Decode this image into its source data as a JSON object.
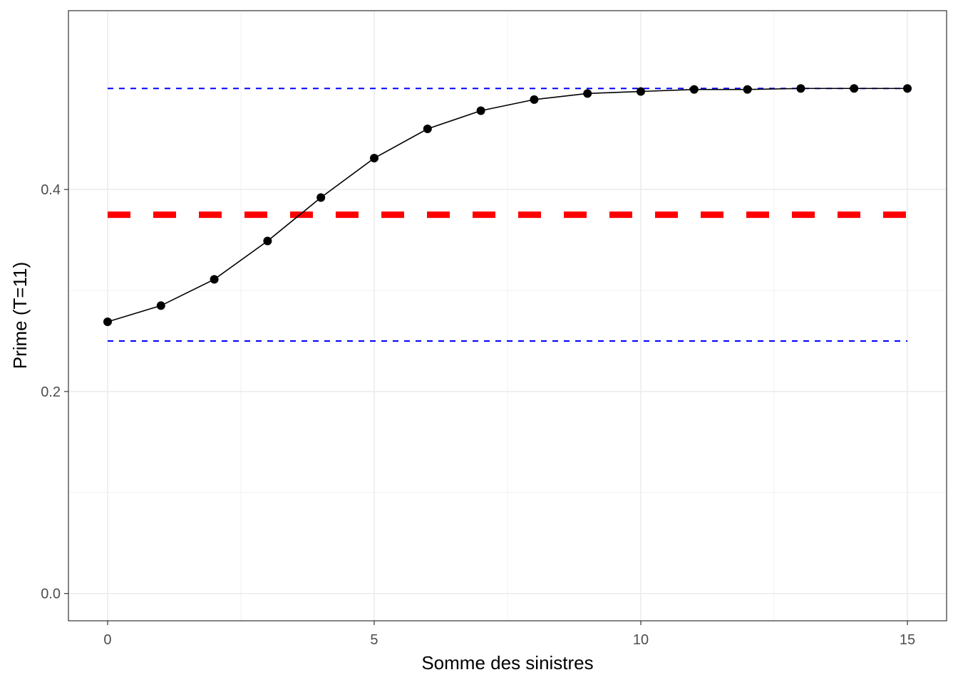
{
  "chart_data": {
    "type": "line",
    "xlabel": "Somme des sinistres",
    "ylabel": "Prime (T=11)",
    "xlim": [
      -0.735,
      15.735
    ],
    "ylim": [
      -0.027,
      0.577
    ],
    "x_ticks": [
      0,
      5,
      10,
      15
    ],
    "x_tick_labels": [
      "0",
      "5",
      "10",
      "15"
    ],
    "y_ticks": [
      0.0,
      0.2,
      0.4
    ],
    "y_tick_labels": [
      "0.0",
      "0.2",
      "0.4"
    ],
    "grid": true,
    "series": [
      {
        "x": [
          0,
          1,
          2,
          3,
          4,
          5,
          6,
          7,
          8,
          9,
          10,
          11,
          12,
          13,
          14,
          15
        ],
        "y": [
          0.269,
          0.285,
          0.311,
          0.349,
          0.392,
          0.431,
          0.46,
          0.478,
          0.489,
          0.495,
          0.497,
          0.499,
          0.499,
          0.5,
          0.5,
          0.5
        ],
        "color": "#000000",
        "markers": true
      }
    ],
    "reference_lines": [
      {
        "y": 0.5,
        "color": "#0000ff",
        "style": "dashed-thin"
      },
      {
        "y": 0.25,
        "color": "#0000ff",
        "style": "dashed-thin"
      },
      {
        "y": 0.375,
        "color": "#ff0000",
        "style": "dashed-thick"
      }
    ]
  }
}
